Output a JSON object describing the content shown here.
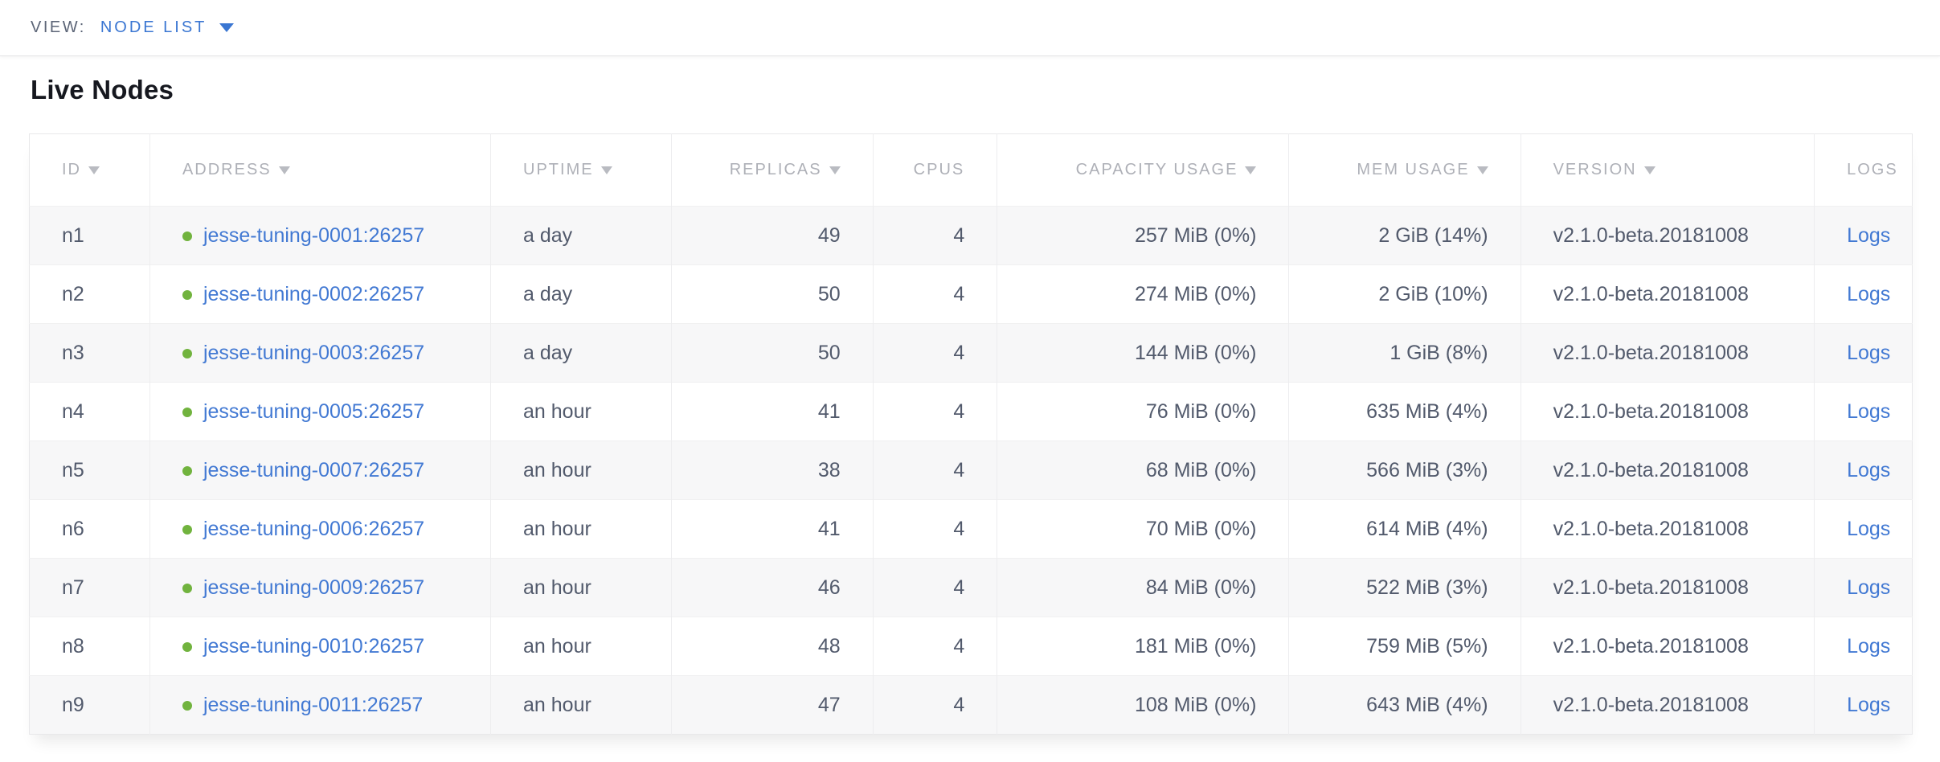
{
  "colors": {
    "link_blue": "#4279d3",
    "accent_blue": "#3a76d2",
    "status_live_green": "#71b33e",
    "header_gray": "#aeb0b7",
    "text_dark": "#525a6c",
    "row_alt_bg": "#f7f7f8",
    "border": "#ededef"
  },
  "icons": {
    "view_dropdown": "caret-down-icon",
    "column_sort": "caret-down-icon",
    "node_status": "green-dot-icon"
  },
  "view_bar": {
    "label": "VIEW:",
    "selected": "NODE LIST"
  },
  "page": {
    "title": "Live Nodes"
  },
  "table": {
    "columns": [
      {
        "key": "id",
        "label": "ID",
        "sortable": true,
        "align": "left"
      },
      {
        "key": "address",
        "label": "ADDRESS",
        "sortable": true,
        "align": "left"
      },
      {
        "key": "uptime",
        "label": "UPTIME",
        "sortable": true,
        "align": "left"
      },
      {
        "key": "replicas",
        "label": "REPLICAS",
        "sortable": true,
        "align": "right"
      },
      {
        "key": "cpus",
        "label": "CPUS",
        "sortable": false,
        "align": "right"
      },
      {
        "key": "capacity",
        "label": "CAPACITY USAGE",
        "sortable": true,
        "align": "right"
      },
      {
        "key": "mem",
        "label": "MEM USAGE",
        "sortable": true,
        "align": "right"
      },
      {
        "key": "version",
        "label": "VERSION",
        "sortable": true,
        "align": "left"
      },
      {
        "key": "logs",
        "label": "LOGS",
        "sortable": false,
        "align": "center"
      }
    ],
    "rows": [
      {
        "id": "n1",
        "status": "live",
        "address": "jesse-tuning-0001:26257",
        "uptime": "a day",
        "replicas": "49",
        "cpus": "4",
        "capacity": "257 MiB (0%)",
        "mem": "2 GiB (14%)",
        "version": "v2.1.0-beta.20181008",
        "logs": "Logs"
      },
      {
        "id": "n2",
        "status": "live",
        "address": "jesse-tuning-0002:26257",
        "uptime": "a day",
        "replicas": "50",
        "cpus": "4",
        "capacity": "274 MiB (0%)",
        "mem": "2 GiB (10%)",
        "version": "v2.1.0-beta.20181008",
        "logs": "Logs"
      },
      {
        "id": "n3",
        "status": "live",
        "address": "jesse-tuning-0003:26257",
        "uptime": "a day",
        "replicas": "50",
        "cpus": "4",
        "capacity": "144 MiB (0%)",
        "mem": "1 GiB (8%)",
        "version": "v2.1.0-beta.20181008",
        "logs": "Logs"
      },
      {
        "id": "n4",
        "status": "live",
        "address": "jesse-tuning-0005:26257",
        "uptime": "an hour",
        "replicas": "41",
        "cpus": "4",
        "capacity": "76 MiB (0%)",
        "mem": "635 MiB (4%)",
        "version": "v2.1.0-beta.20181008",
        "logs": "Logs"
      },
      {
        "id": "n5",
        "status": "live",
        "address": "jesse-tuning-0007:26257",
        "uptime": "an hour",
        "replicas": "38",
        "cpus": "4",
        "capacity": "68 MiB (0%)",
        "mem": "566 MiB (3%)",
        "version": "v2.1.0-beta.20181008",
        "logs": "Logs"
      },
      {
        "id": "n6",
        "status": "live",
        "address": "jesse-tuning-0006:26257",
        "uptime": "an hour",
        "replicas": "41",
        "cpus": "4",
        "capacity": "70 MiB (0%)",
        "mem": "614 MiB (4%)",
        "version": "v2.1.0-beta.20181008",
        "logs": "Logs"
      },
      {
        "id": "n7",
        "status": "live",
        "address": "jesse-tuning-0009:26257",
        "uptime": "an hour",
        "replicas": "46",
        "cpus": "4",
        "capacity": "84 MiB (0%)",
        "mem": "522 MiB (3%)",
        "version": "v2.1.0-beta.20181008",
        "logs": "Logs"
      },
      {
        "id": "n8",
        "status": "live",
        "address": "jesse-tuning-0010:26257",
        "uptime": "an hour",
        "replicas": "48",
        "cpus": "4",
        "capacity": "181 MiB (0%)",
        "mem": "759 MiB (5%)",
        "version": "v2.1.0-beta.20181008",
        "logs": "Logs"
      },
      {
        "id": "n9",
        "status": "live",
        "address": "jesse-tuning-0011:26257",
        "uptime": "an hour",
        "replicas": "47",
        "cpus": "4",
        "capacity": "108 MiB (0%)",
        "mem": "643 MiB (4%)",
        "version": "v2.1.0-beta.20181008",
        "logs": "Logs"
      }
    ]
  }
}
